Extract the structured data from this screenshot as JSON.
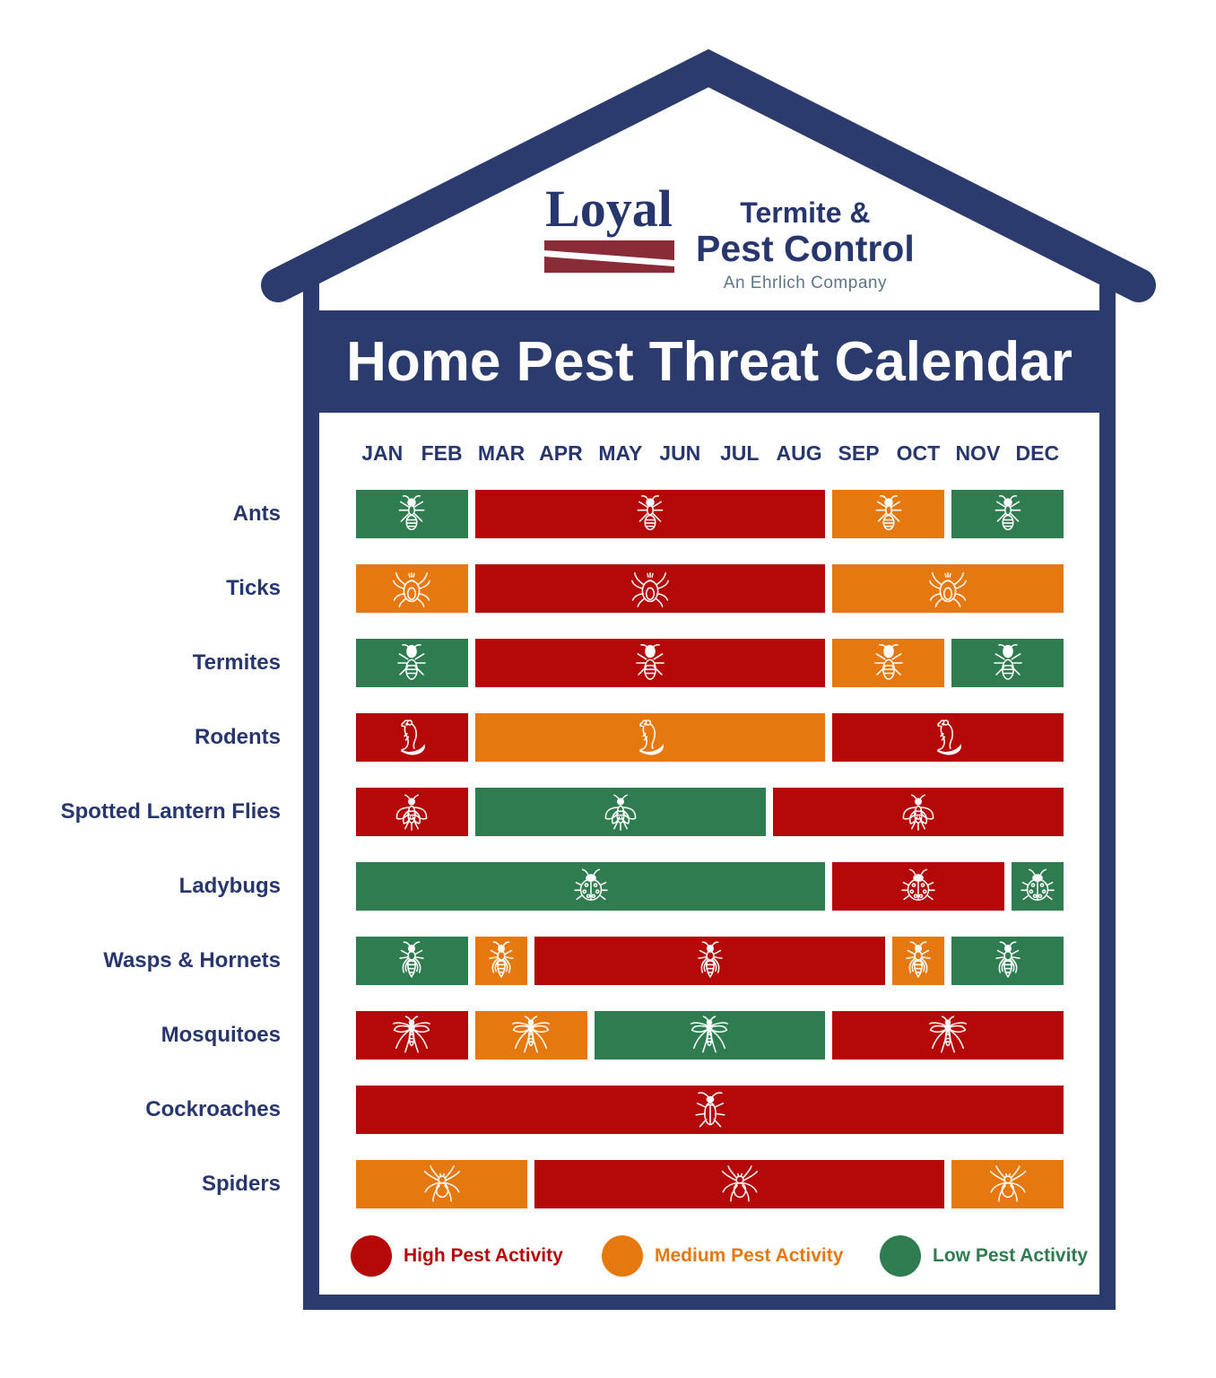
{
  "logo": {
    "brand": "Loyal",
    "line1": "Termite &",
    "line2": "Pest Control",
    "tagline": "An Ehrlich Company"
  },
  "banner": {
    "title": "Home Pest Threat Calendar"
  },
  "months": [
    "JAN",
    "FEB",
    "MAR",
    "APR",
    "MAY",
    "JUN",
    "JUL",
    "AUG",
    "SEP",
    "OCT",
    "NOV",
    "DEC"
  ],
  "activity_levels": {
    "high": {
      "label": "High Pest Activity",
      "color": "#b50808"
    },
    "medium": {
      "label": "Medium Pest Activity",
      "color": "#e5780f"
    },
    "low": {
      "label": "Low Pest Activity",
      "color": "#2f7c50"
    }
  },
  "rows": [
    {
      "label": "Ants",
      "icon": "ant-icon",
      "segments": [
        {
          "level": "low",
          "span": 2
        },
        {
          "level": "high",
          "span": 6
        },
        {
          "level": "medium",
          "span": 2
        },
        {
          "level": "low",
          "span": 2
        }
      ]
    },
    {
      "label": "Ticks",
      "icon": "tick-icon",
      "segments": [
        {
          "level": "medium",
          "span": 2
        },
        {
          "level": "high",
          "span": 6
        },
        {
          "level": "medium",
          "span": 4
        }
      ]
    },
    {
      "label": "Termites",
      "icon": "termite-icon",
      "segments": [
        {
          "level": "low",
          "span": 2
        },
        {
          "level": "high",
          "span": 6
        },
        {
          "level": "medium",
          "span": 2
        },
        {
          "level": "low",
          "span": 2
        }
      ]
    },
    {
      "label": "Rodents",
      "icon": "rodent-icon",
      "segments": [
        {
          "level": "high",
          "span": 2
        },
        {
          "level": "medium",
          "span": 6
        },
        {
          "level": "high",
          "span": 4
        }
      ]
    },
    {
      "label": "Spotted Lantern Flies",
      "icon": "lantern-fly-icon",
      "segments": [
        {
          "level": "high",
          "span": 2
        },
        {
          "level": "low",
          "span": 5
        },
        {
          "level": "high",
          "span": 5
        }
      ]
    },
    {
      "label": "Ladybugs",
      "icon": "ladybug-icon",
      "segments": [
        {
          "level": "low",
          "span": 8
        },
        {
          "level": "high",
          "span": 3
        },
        {
          "level": "low",
          "span": 1
        }
      ]
    },
    {
      "label": "Wasps & Hornets",
      "icon": "wasp-icon",
      "segments": [
        {
          "level": "low",
          "span": 2
        },
        {
          "level": "medium",
          "span": 1
        },
        {
          "level": "high",
          "span": 6
        },
        {
          "level": "medium",
          "span": 1
        },
        {
          "level": "low",
          "span": 2
        }
      ]
    },
    {
      "label": "Mosquitoes",
      "icon": "mosquito-icon",
      "segments": [
        {
          "level": "high",
          "span": 2
        },
        {
          "level": "medium",
          "span": 2
        },
        {
          "level": "low",
          "span": 4
        },
        {
          "level": "high",
          "span": 4
        }
      ]
    },
    {
      "label": "Cockroaches",
      "icon": "cockroach-icon",
      "segments": [
        {
          "level": "high",
          "span": 12
        }
      ]
    },
    {
      "label": "Spiders",
      "icon": "spider-icon",
      "segments": [
        {
          "level": "medium",
          "span": 3
        },
        {
          "level": "high",
          "span": 7
        },
        {
          "level": "medium",
          "span": 2
        }
      ]
    }
  ],
  "legend": [
    {
      "level": "high",
      "label": "High Pest Activity"
    },
    {
      "level": "medium",
      "label": "Medium Pest Activity"
    },
    {
      "level": "low",
      "label": "Low Pest Activity"
    }
  ],
  "colors": {
    "navy": "#2b3b6e",
    "maroon": "#8a2b38",
    "high_red": "#b50808",
    "medium_orange": "#e5780f",
    "low_green": "#2f7c50",
    "tagline_gray": "#5e7487"
  },
  "chart_data": {
    "type": "heatmap",
    "title": "Home Pest Threat Calendar",
    "categories": [
      "JAN",
      "FEB",
      "MAR",
      "APR",
      "MAY",
      "JUN",
      "JUL",
      "AUG",
      "SEP",
      "OCT",
      "NOV",
      "DEC"
    ],
    "value_legend": {
      "high": "High Pest Activity",
      "medium": "Medium Pest Activity",
      "low": "Low Pest Activity"
    },
    "series": [
      {
        "name": "Ants",
        "values": [
          "low",
          "low",
          "high",
          "high",
          "high",
          "high",
          "high",
          "high",
          "medium",
          "medium",
          "low",
          "low"
        ]
      },
      {
        "name": "Ticks",
        "values": [
          "medium",
          "medium",
          "high",
          "high",
          "high",
          "high",
          "high",
          "high",
          "medium",
          "medium",
          "medium",
          "medium"
        ]
      },
      {
        "name": "Termites",
        "values": [
          "low",
          "low",
          "high",
          "high",
          "high",
          "high",
          "high",
          "high",
          "medium",
          "medium",
          "low",
          "low"
        ]
      },
      {
        "name": "Rodents",
        "values": [
          "high",
          "high",
          "medium",
          "medium",
          "medium",
          "medium",
          "medium",
          "medium",
          "high",
          "high",
          "high",
          "high"
        ]
      },
      {
        "name": "Spotted Lantern Flies",
        "values": [
          "high",
          "high",
          "low",
          "low",
          "low",
          "low",
          "low",
          "high",
          "high",
          "high",
          "high",
          "high"
        ]
      },
      {
        "name": "Ladybugs",
        "values": [
          "low",
          "low",
          "low",
          "low",
          "low",
          "low",
          "low",
          "low",
          "high",
          "high",
          "high",
          "low"
        ]
      },
      {
        "name": "Wasps & Hornets",
        "values": [
          "low",
          "low",
          "medium",
          "high",
          "high",
          "high",
          "high",
          "high",
          "high",
          "medium",
          "low",
          "low"
        ]
      },
      {
        "name": "Mosquitoes",
        "values": [
          "high",
          "high",
          "medium",
          "medium",
          "low",
          "low",
          "low",
          "low",
          "high",
          "high",
          "high",
          "high"
        ]
      },
      {
        "name": "Cockroaches",
        "values": [
          "high",
          "high",
          "high",
          "high",
          "high",
          "high",
          "high",
          "high",
          "high",
          "high",
          "high",
          "high"
        ]
      },
      {
        "name": "Spiders",
        "values": [
          "medium",
          "medium",
          "medium",
          "high",
          "high",
          "high",
          "high",
          "high",
          "high",
          "high",
          "medium",
          "medium"
        ]
      }
    ]
  }
}
